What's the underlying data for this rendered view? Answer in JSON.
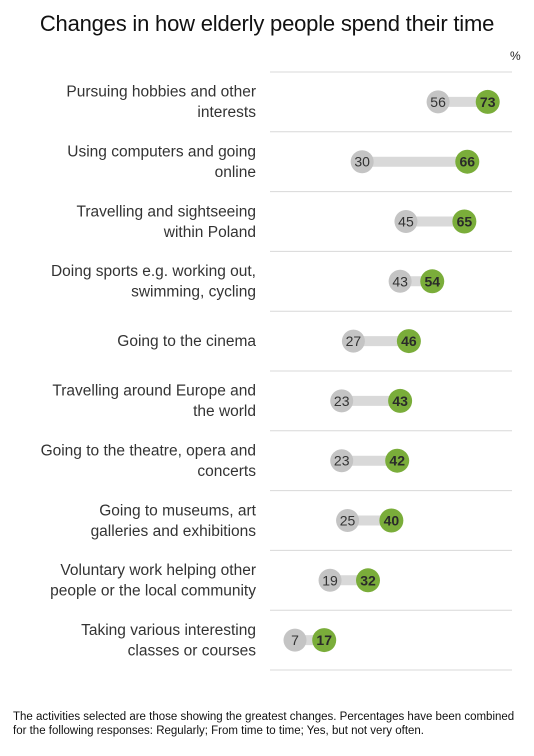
{
  "title": "Changes in how elderly people spend their time",
  "unit": "%",
  "footnote": "The activities selected are those showing the greatest changes. Percentages have been combined for the following responses: Regularly; From time to time; Yes, but not very often.",
  "colors": {
    "before": "#c4c4c4",
    "after": "#7aad3a",
    "connector": "#d9d9d9",
    "divider": "#d8d8d8"
  },
  "chart_data": {
    "type": "dumbbell",
    "unit": "%",
    "xlim": [
      0,
      80
    ],
    "grid": false,
    "legend": "none",
    "categories": [
      [
        "Pursuing hobbies and other",
        "interests"
      ],
      [
        "Using computers and going",
        "online"
      ],
      [
        "Travelling and sightseeing",
        "within Poland"
      ],
      [
        "Doing sports e.g. working out,",
        "swimming, cycling"
      ],
      [
        "Going to the cinema"
      ],
      [
        "Travelling around Europe and",
        "the world"
      ],
      [
        "Going to the theatre, opera and",
        "concerts"
      ],
      [
        "Going to museums, art",
        "galleries and exhibitions"
      ],
      [
        "Voluntary work helping other",
        "people or the local community"
      ],
      [
        "Taking various interesting",
        "classes or courses"
      ]
    ],
    "series": [
      {
        "values": [
          56,
          30,
          45,
          43,
          27,
          23,
          23,
          25,
          19,
          7
        ]
      },
      {
        "values": [
          73,
          66,
          65,
          54,
          46,
          43,
          42,
          40,
          32,
          17
        ]
      }
    ]
  }
}
